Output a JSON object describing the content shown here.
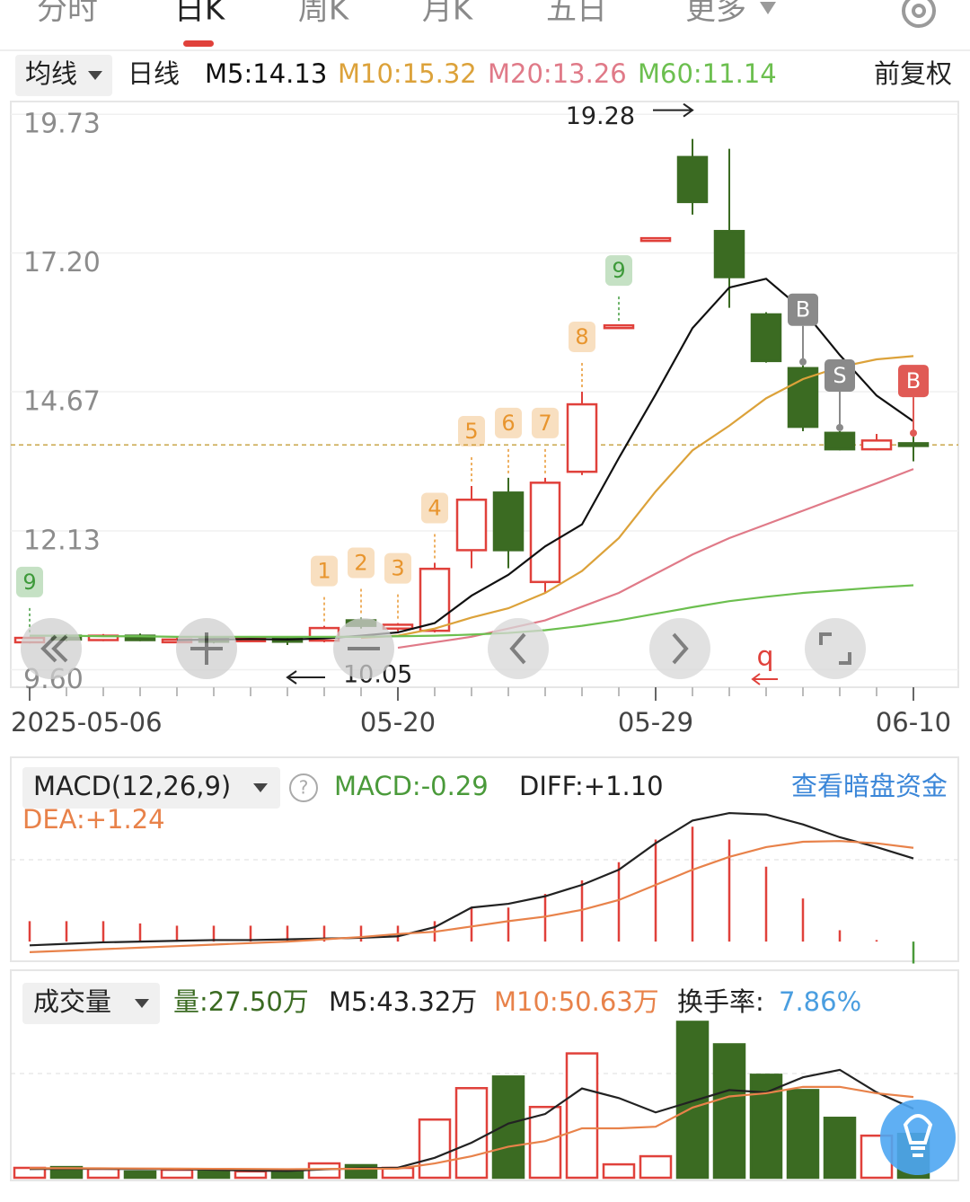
{
  "tabs": [
    "分时",
    "日K",
    "周K",
    "月K",
    "五日",
    "更多"
  ],
  "ma_bar": {
    "selector": "均线",
    "period": "日线",
    "legend": [
      "M5:14.13",
      "M10:15.32",
      "M20:13.26",
      "M60:11.14"
    ],
    "adjust": "前复权"
  },
  "chart_data": [
    {
      "type": "candlestick",
      "categories": [
        "2025-05-06",
        null,
        null,
        null,
        null,
        null,
        null,
        null,
        null,
        null,
        "05-20",
        null,
        null,
        null,
        null,
        null,
        null,
        "05-29",
        null,
        null,
        null,
        null,
        null,
        null,
        "06-10"
      ],
      "open": [
        10.1,
        10.22,
        10.14,
        10.22,
        10.12,
        10.16,
        10.12,
        10.16,
        10.13,
        10.5,
        10.35,
        10.31,
        11.78,
        12.83,
        11.2,
        13.21,
        15.88,
        17.47,
        18.95,
        17.6,
        16.08,
        15.1,
        13.92,
        13.62,
        13.73
      ],
      "high": [
        10.2,
        10.25,
        10.25,
        10.26,
        10.18,
        10.2,
        10.2,
        10.2,
        10.4,
        10.55,
        10.45,
        11.55,
        12.95,
        13.1,
        13.1,
        14.67,
        15.88,
        17.47,
        19.28,
        19.1,
        16.12,
        15.15,
        13.95,
        13.9,
        13.85
      ],
      "low": [
        10.08,
        10.12,
        10.12,
        10.12,
        10.1,
        10.08,
        10.1,
        10.05,
        10.1,
        10.35,
        10.3,
        10.28,
        11.45,
        11.45,
        11.0,
        13.15,
        15.88,
        17.47,
        17.9,
        16.2,
        15.2,
        13.95,
        13.6,
        13.6,
        13.4
      ],
      "close": [
        10.18,
        10.15,
        10.22,
        10.14,
        10.15,
        10.12,
        10.17,
        10.12,
        10.36,
        10.4,
        10.42,
        11.44,
        12.7,
        11.78,
        13.01,
        14.44,
        15.88,
        17.47,
        18.13,
        16.76,
        15.23,
        14.03,
        13.62,
        13.78,
        13.7
      ],
      "up_color": "#e0413b",
      "down_color": "#3b6b22",
      "ylim": [
        9.28,
        19.93
      ],
      "yticks": [
        {
          "value": 9.6,
          "label": "9.60"
        },
        12.13,
        14.67,
        {
          "value": 17.2,
          "label": "17.20"
        },
        19.73
      ],
      "grid": true,
      "series": [
        {
          "color": "#111111",
          "values": [
            null,
            null,
            null,
            null,
            10.14,
            10.15,
            10.16,
            10.15,
            10.17,
            10.22,
            10.28,
            10.45,
            10.95,
            11.33,
            11.85,
            12.25,
            13.46,
            14.62,
            15.83,
            16.57,
            16.73,
            16.16,
            15.34,
            14.6,
            14.13
          ]
        },
        {
          "color": "#dca23a",
          "values": [
            null,
            null,
            null,
            null,
            null,
            null,
            null,
            null,
            null,
            10.18,
            10.22,
            10.35,
            10.55,
            10.72,
            11.0,
            11.4,
            12.0,
            12.85,
            13.6,
            14.05,
            14.55,
            14.9,
            15.12,
            15.26,
            15.32
          ]
        },
        {
          "color": "#e07a88",
          "values": [
            null,
            null,
            null,
            null,
            null,
            null,
            null,
            null,
            null,
            null,
            10.0,
            10.1,
            10.2,
            10.35,
            10.5,
            10.75,
            11.0,
            11.35,
            11.7,
            12.0,
            12.25,
            12.5,
            12.75,
            13.0,
            13.26
          ]
        },
        {
          "color": "#6cbf4f",
          "values": [
            10.22,
            10.22,
            10.21,
            10.21,
            10.2,
            10.2,
            10.2,
            10.2,
            10.2,
            10.2,
            10.21,
            10.22,
            10.24,
            10.27,
            10.32,
            10.4,
            10.5,
            10.62,
            10.74,
            10.85,
            10.93,
            11.0,
            11.05,
            11.1,
            11.14
          ]
        }
      ],
      "high_label": "19.28",
      "low_label": "10.05",
      "td_labels": [
        "9",
        null,
        null,
        null,
        null,
        null,
        null,
        null,
        "1",
        "2",
        "3",
        "4",
        "5",
        "6",
        "7",
        "8",
        "9",
        null,
        null,
        null,
        null,
        null,
        null,
        null,
        null
      ],
      "td_colors": [
        "#3e9a3a",
        null,
        null,
        null,
        null,
        null,
        null,
        null,
        "#e8952e",
        "#e8952e",
        "#e8952e",
        "#e8952e",
        "#e8952e",
        "#e8952e",
        "#e8952e",
        "#e8952e",
        "#3e9a3a",
        null,
        null,
        null,
        null,
        null,
        null,
        null,
        null
      ],
      "trade_labels": [
        null,
        null,
        null,
        null,
        null,
        null,
        null,
        null,
        null,
        null,
        null,
        null,
        null,
        null,
        null,
        null,
        null,
        null,
        null,
        null,
        null,
        "B",
        "S",
        null,
        "B"
      ],
      "trade_colors": [
        null,
        null,
        null,
        null,
        null,
        null,
        null,
        null,
        null,
        null,
        null,
        null,
        null,
        null,
        null,
        null,
        null,
        null,
        null,
        null,
        null,
        "#8a8a8a",
        "#8a8a8a",
        null,
        "#e05a55"
      ],
      "note": "q"
    },
    {
      "type": "macd",
      "title": "MACD(12,26,9)",
      "values": [
        0.27,
        0.27,
        0.27,
        0.24,
        0.21,
        0.21,
        0.21,
        0.21,
        0.21,
        0.21,
        0.21,
        0.27,
        0.45,
        0.45,
        0.63,
        0.81,
        1.05,
        1.35,
        1.52,
        1.35,
        0.99,
        0.57,
        0.15,
        0.02,
        -0.29
      ],
      "up_color": "#e0413b",
      "down_color": "#4a9a3a",
      "ylim": [
        -0.26,
        1.76
      ],
      "series": [
        {
          "color": "#222222",
          "values": [
            -0.05,
            -0.03,
            -0.01,
            0.0,
            0.01,
            0.02,
            0.02,
            0.03,
            0.04,
            0.05,
            0.07,
            0.19,
            0.45,
            0.5,
            0.6,
            0.75,
            0.95,
            1.3,
            1.6,
            1.7,
            1.68,
            1.55,
            1.38,
            1.25,
            1.1
          ]
        },
        {
          "color": "#e8824a",
          "values": [
            -0.14,
            -0.12,
            -0.1,
            -0.08,
            -0.06,
            -0.04,
            -0.02,
            0.0,
            0.03,
            0.06,
            0.1,
            0.13,
            0.2,
            0.27,
            0.33,
            0.42,
            0.55,
            0.75,
            0.95,
            1.12,
            1.25,
            1.32,
            1.33,
            1.3,
            1.24
          ]
        }
      ],
      "readouts": [
        "MACD:-0.29",
        "DIFF:+1.10",
        "DEA:+1.24"
      ],
      "link": "查看暗盘资金"
    },
    {
      "type": "volume",
      "title": "成交量",
      "values": [
        6.2,
        6.7,
        5.6,
        3.9,
        5.0,
        4.0,
        4.0,
        4.5,
        9.0,
        7.9,
        6.2,
        36.5,
        56.2,
        63.5,
        44.4,
        78.0,
        8.4,
        13.5,
        97.8,
        83.7,
        64.6,
        55.0,
        37.6,
        26.4,
        27.5
      ],
      "ylim": [
        0,
        102
      ],
      "series": [
        {
          "color": "#222222",
          "values": [
            5.5,
            5.6,
            5.6,
            5.5,
            5.5,
            5.0,
            4.5,
            4.3,
            5.3,
            5.9,
            6.3,
            12.5,
            22.0,
            34.0,
            40.0,
            56.0,
            50.0,
            41.0,
            48.0,
            55.0,
            53.5,
            63.0,
            67.7,
            53.6,
            43.32
          ]
        },
        {
          "color": "#e8824a",
          "values": [
            6.0,
            6.0,
            5.9,
            5.8,
            5.7,
            5.6,
            5.5,
            5.4,
            5.5,
            5.6,
            5.7,
            9.0,
            13.5,
            19.5,
            23.0,
            31.0,
            31.0,
            32.0,
            44.0,
            51.0,
            53.0,
            57.0,
            57.0,
            53.0,
            50.63
          ]
        }
      ],
      "readouts": [
        "量:27.50万",
        "M5:43.32万",
        "M10:50.63万"
      ],
      "turnover_label": "换手率:",
      "turnover": "7.86%"
    }
  ]
}
